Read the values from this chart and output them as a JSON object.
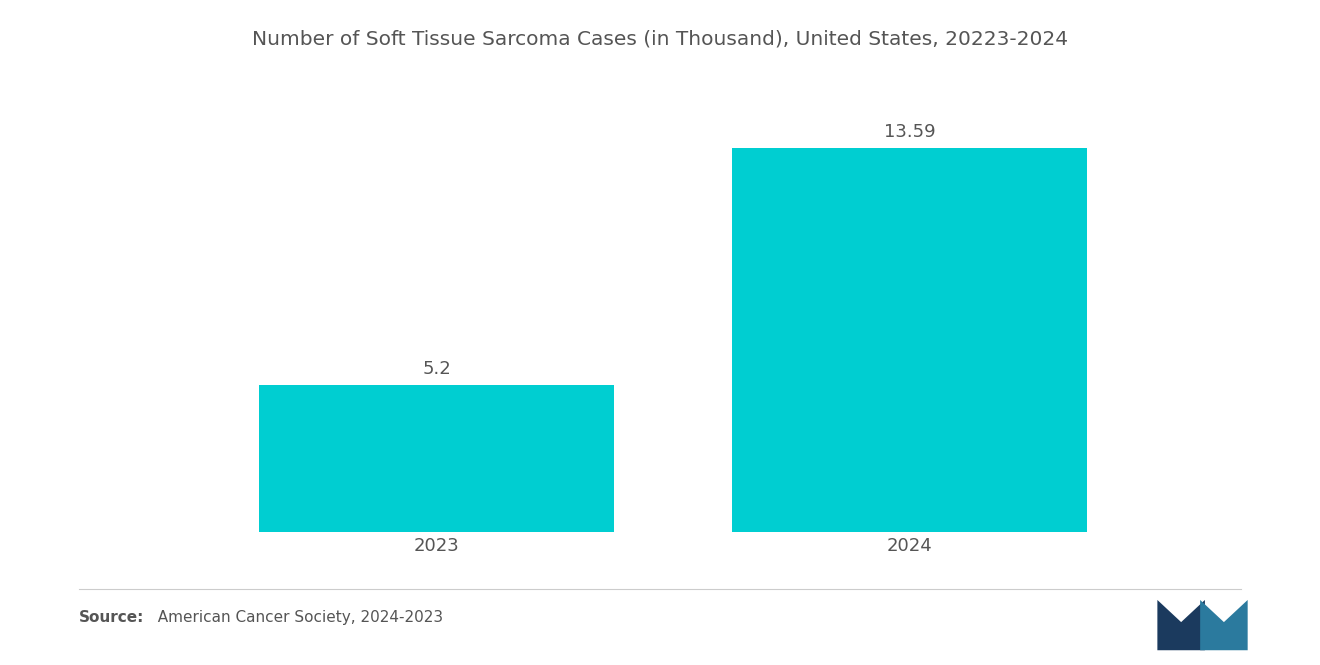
{
  "title": "Number of Soft Tissue Sarcoma Cases (in Thousand), United States, 20223-2024",
  "categories": [
    "2023",
    "2024"
  ],
  "values": [
    5.2,
    13.59
  ],
  "bar_color": "#00CED1",
  "value_labels": [
    "5.2",
    "13.59"
  ],
  "background_color": "#ffffff",
  "text_color": "#555555",
  "title_fontsize": 14.5,
  "label_fontsize": 13,
  "value_fontsize": 13,
  "source_bold": "Source:",
  "source_normal": "  American Cancer Society, 2024-2023",
  "ylim": [
    0,
    16
  ],
  "x_positions": [
    1,
    2
  ],
  "bar_width": 0.75,
  "xlim": [
    0.3,
    2.7
  ]
}
